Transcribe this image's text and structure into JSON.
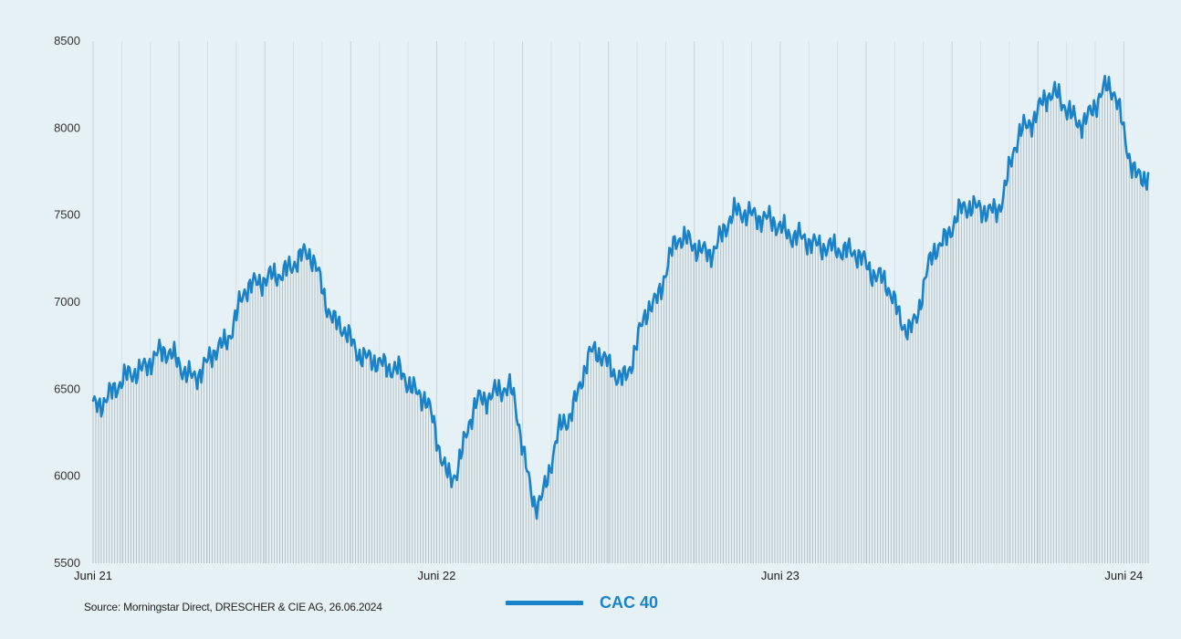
{
  "chart_data": {
    "type": "area",
    "y_ticks": [
      "8500",
      "8000",
      "7500",
      "7000",
      "6500",
      "6000",
      "5500"
    ],
    "ylim": [
      5500,
      8500
    ],
    "x_ticks": [
      "Juni 21",
      "Juni 22",
      "Juni 23",
      "Juni 24"
    ],
    "series": [
      {
        "name": "CAC 40",
        "color": "#1a82c8",
        "x": [
          "2021-06",
          "2021-07",
          "2021-08",
          "2021-09",
          "2021-10",
          "2021-11",
          "2021-12",
          "2022-01",
          "2022-02",
          "2022-03",
          "2022-04",
          "2022-05",
          "2022-06",
          "2022-07",
          "2022-08",
          "2022-09",
          "2022-10",
          "2022-11",
          "2022-12",
          "2023-01",
          "2023-02",
          "2023-03",
          "2023-04",
          "2023-05",
          "2023-06",
          "2023-07",
          "2023-08",
          "2023-09",
          "2023-10",
          "2023-11",
          "2023-12",
          "2024-01",
          "2024-02",
          "2024-03",
          "2024-04",
          "2024-05",
          "2024-06"
        ],
        "values": [
          6400,
          6600,
          6720,
          6570,
          6750,
          7100,
          7160,
          7280,
          6880,
          6680,
          6620,
          6460,
          5990,
          6440,
          6510,
          5840,
          6320,
          6720,
          6560,
          6980,
          7370,
          7280,
          7520,
          7480,
          7380,
          7320,
          7290,
          7140,
          6840,
          7320,
          7550,
          7520,
          8000,
          8200,
          8030,
          8240,
          7720
        ]
      }
    ],
    "grid": "vertical",
    "legend": "bottom-center"
  },
  "source": "Source: Morningstar Direct, DRESCHER & CIE AG, 26.06.2024",
  "legend_label": "CAC 40"
}
